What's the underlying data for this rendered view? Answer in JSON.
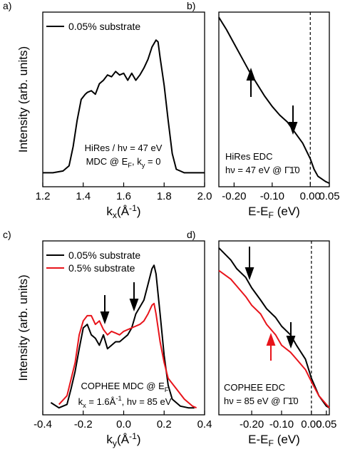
{
  "chart_data": [
    {
      "type": "line",
      "label": "a)",
      "x_label": [
        {
          "t": "k"
        },
        {
          "sub": "x"
        },
        {
          "t": "(Å"
        },
        {
          "sup": "-1"
        },
        {
          "t": ")"
        }
      ],
      "y_label": [
        {
          "t": "Intensity (arb. units)"
        }
      ],
      "xlim": [
        1.2,
        2.0
      ],
      "xticks": [
        1.2,
        1.4,
        1.6,
        1.8,
        {
          "value": 2.0,
          "label": "2.0"
        }
      ],
      "ylim": [
        0,
        1
      ],
      "legend": "upper left",
      "series": [
        {
          "name": "0.05% substrate",
          "color": "#000000",
          "x": [
            1.2,
            1.25,
            1.3,
            1.33,
            1.35,
            1.37,
            1.39,
            1.41,
            1.42,
            1.44,
            1.46,
            1.48,
            1.5,
            1.52,
            1.54,
            1.56,
            1.58,
            1.6,
            1.62,
            1.64,
            1.66,
            1.68,
            1.7,
            1.72,
            1.74,
            1.76,
            1.77,
            1.78,
            1.8,
            1.82,
            1.84,
            1.86,
            1.9,
            1.95,
            2.0
          ],
          "values": [
            0.08,
            0.08,
            0.09,
            0.12,
            0.23,
            0.38,
            0.5,
            0.53,
            0.54,
            0.55,
            0.53,
            0.59,
            0.61,
            0.64,
            0.63,
            0.66,
            0.64,
            0.65,
            0.61,
            0.65,
            0.61,
            0.64,
            0.68,
            0.73,
            0.8,
            0.84,
            0.83,
            0.74,
            0.58,
            0.38,
            0.19,
            0.1,
            0.08,
            0.08,
            0.08
          ]
        }
      ],
      "annotations": [
        [
          {
            "t": "HiRes / hν = 47 eV"
          }
        ],
        [
          {
            "t": "MDC @ E"
          },
          {
            "sub": "F"
          },
          {
            "t": ", k"
          },
          {
            "sub": "y"
          },
          {
            "t": " = 0"
          }
        ]
      ]
    },
    {
      "type": "line",
      "label": "b)",
      "x_label": [
        {
          "t": "E-E"
        },
        {
          "sub": "F"
        },
        {
          "t": " (eV)"
        }
      ],
      "xlim": [
        -0.24,
        0.05
      ],
      "xticks": [
        {
          "value": -0.2,
          "label": "-0.20"
        },
        {
          "value": -0.1,
          "label": "-0.10"
        },
        {
          "value": 0,
          "label": "0.00"
        },
        0.05
      ],
      "ylim": [
        0,
        1
      ],
      "vline": 0,
      "series": [
        {
          "color": "#000000",
          "x": [
            -0.24,
            -0.22,
            -0.2,
            -0.18,
            -0.16,
            -0.14,
            -0.12,
            -0.1,
            -0.08,
            -0.06,
            -0.04,
            -0.02,
            0,
            0.01,
            0.02,
            0.04,
            0.05
          ],
          "values": [
            0.97,
            0.9,
            0.82,
            0.74,
            0.66,
            0.59,
            0.52,
            0.46,
            0.41,
            0.37,
            0.31,
            0.25,
            0.16,
            0.1,
            0.06,
            0.03,
            0.02
          ]
        }
      ],
      "annotations": [
        [
          {
            "t": "HiRes EDC"
          }
        ],
        [
          {
            "t": "hν = 47 eV @ Γ̄1̄0"
          }
        ]
      ]
    },
    {
      "type": "line",
      "label": "c)",
      "x_label": [
        {
          "t": "k"
        },
        {
          "sub": "y"
        },
        {
          "t": "(Å"
        },
        {
          "sup": "-1"
        },
        {
          "t": ")"
        }
      ],
      "y_label": [
        {
          "t": "Intensity (arb. units)"
        }
      ],
      "xlim": [
        -0.4,
        0.4
      ],
      "xticks": [
        -0.4,
        -0.2,
        {
          "value": 0,
          "label": "0.0"
        },
        0.2,
        0.4
      ],
      "ylim": [
        0,
        1
      ],
      "legend": "upper left",
      "series": [
        {
          "name": "0.05% substrate",
          "color": "#000000",
          "x": [
            -0.36,
            -0.32,
            -0.28,
            -0.26,
            -0.24,
            -0.22,
            -0.2,
            -0.18,
            -0.16,
            -0.14,
            -0.12,
            -0.1,
            -0.08,
            -0.06,
            -0.04,
            -0.02,
            0,
            0.02,
            0.04,
            0.06,
            0.08,
            0.1,
            0.12,
            0.14,
            0.15,
            0.16,
            0.18,
            0.2,
            0.22,
            0.24,
            0.28,
            0.32,
            0.35
          ],
          "values": [
            0.07,
            0.04,
            0.06,
            0.15,
            0.25,
            0.38,
            0.5,
            0.52,
            0.46,
            0.44,
            0.4,
            0.46,
            0.38,
            0.4,
            0.42,
            0.42,
            0.44,
            0.46,
            0.5,
            0.58,
            0.62,
            0.66,
            0.75,
            0.84,
            0.86,
            0.81,
            0.58,
            0.34,
            0.17,
            0.09,
            0.05,
            0.04,
            0.04
          ]
        },
        {
          "name": "0.5% substrate",
          "color": "#e8141b",
          "x": [
            -0.32,
            -0.28,
            -0.24,
            -0.22,
            -0.2,
            -0.18,
            -0.16,
            -0.14,
            -0.12,
            -0.1,
            -0.08,
            -0.06,
            -0.04,
            -0.02,
            0,
            0.04,
            0.08,
            0.1,
            0.12,
            0.14,
            0.15,
            0.16,
            0.18,
            0.2,
            0.22,
            0.26,
            0.3,
            0.34,
            0.36
          ],
          "values": [
            0.06,
            0.11,
            0.3,
            0.46,
            0.54,
            0.57,
            0.57,
            0.52,
            0.54,
            0.49,
            0.46,
            0.48,
            0.47,
            0.46,
            0.48,
            0.5,
            0.52,
            0.54,
            0.58,
            0.63,
            0.64,
            0.58,
            0.42,
            0.3,
            0.21,
            0.15,
            0.09,
            0.05,
            0.04
          ]
        }
      ],
      "annotations": [
        [
          {
            "t": "COPHEE MDC @ E"
          },
          {
            "sub": "F"
          }
        ],
        [
          {
            "t": "k"
          },
          {
            "sub": "x"
          },
          {
            "t": " = 1.6Å"
          },
          {
            "sup": "-1"
          },
          {
            "t": ", hν = 85 eV"
          }
        ]
      ]
    },
    {
      "type": "line",
      "label": "d)",
      "x_label": [
        {
          "t": "E-E"
        },
        {
          "sub": "F"
        },
        {
          "t": " (eV)"
        }
      ],
      "xlim": [
        -0.31,
        0.06
      ],
      "xticks": [
        {
          "value": -0.2,
          "label": "-0.20"
        },
        {
          "value": -0.1,
          "label": "-0.10"
        },
        {
          "value": 0,
          "label": "0.00"
        },
        0.05
      ],
      "ylim": [
        0,
        1
      ],
      "vline": 0,
      "series": [
        {
          "color": "#000000",
          "x": [
            -0.31,
            -0.27,
            -0.25,
            -0.22,
            -0.2,
            -0.17,
            -0.15,
            -0.12,
            -0.1,
            -0.07,
            -0.05,
            -0.02,
            0,
            0.025,
            0.05,
            0.06
          ],
          "values": [
            0.96,
            0.89,
            0.84,
            0.79,
            0.73,
            0.66,
            0.61,
            0.56,
            0.51,
            0.46,
            0.4,
            0.32,
            0.21,
            0.11,
            0.05,
            0.04
          ]
        },
        {
          "color": "#e8141b",
          "x": [
            -0.31,
            -0.27,
            -0.25,
            -0.22,
            -0.2,
            -0.17,
            -0.15,
            -0.12,
            -0.1,
            -0.07,
            -0.05,
            -0.02,
            0,
            0.025,
            0.05,
            0.06
          ],
          "values": [
            0.83,
            0.78,
            0.74,
            0.68,
            0.63,
            0.58,
            0.52,
            0.46,
            0.4,
            0.36,
            0.32,
            0.26,
            0.19,
            0.11,
            0.06,
            0.04
          ]
        }
      ],
      "annotations": [
        [
          {
            "t": "COPHEE EDC"
          }
        ],
        [
          {
            "t": "hν = 85 eV @ Γ̄1̄0"
          }
        ]
      ]
    }
  ]
}
